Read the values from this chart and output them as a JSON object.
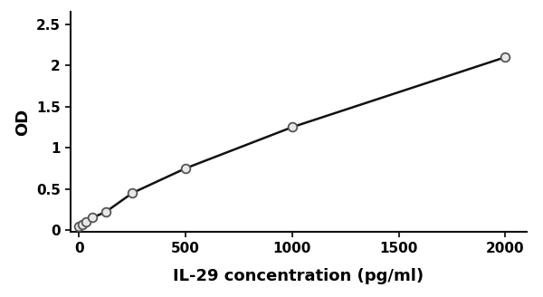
{
  "x": [
    0,
    15.6,
    31.25,
    62.5,
    125,
    250,
    500,
    1000,
    2000
  ],
  "y": [
    0.04,
    0.07,
    0.1,
    0.15,
    0.22,
    0.45,
    0.75,
    1.25,
    2.1
  ],
  "xlabel": "IL-29 concentration (pg/ml)",
  "ylabel": "OD",
  "xlim": [
    -40,
    2100
  ],
  "ylim": [
    -0.02,
    2.65
  ],
  "yticks": [
    0,
    0.5,
    1.0,
    1.5,
    2.0,
    2.5
  ],
  "ytick_labels": [
    "0",
    "0.5",
    "1",
    "1.5",
    "2",
    "2.5"
  ],
  "xticks": [
    0,
    500,
    1000,
    1500,
    2000
  ],
  "xtick_labels": [
    "0",
    "500",
    "1000",
    "1500",
    "2000"
  ],
  "line_color": "#111111",
  "marker_facecolor": "#e8e8e8",
  "marker_edgecolor": "#555555",
  "marker_size": 7,
  "line_width": 1.8,
  "xlabel_fontsize": 13,
  "ylabel_fontsize": 13,
  "tick_fontsize": 11,
  "background_color": "#ffffff"
}
